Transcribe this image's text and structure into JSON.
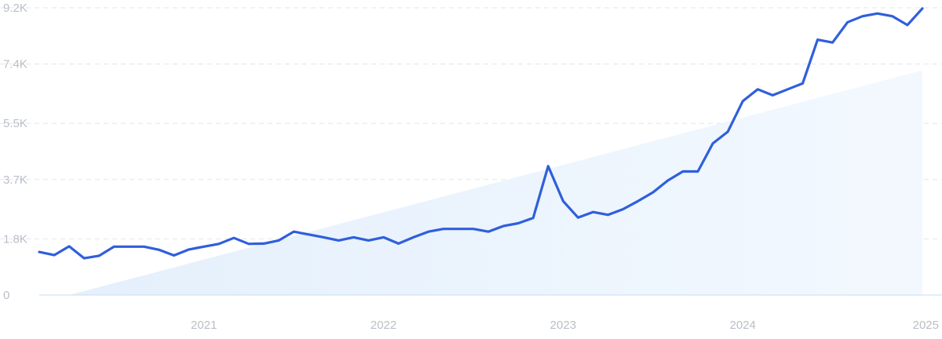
{
  "chart_data": {
    "type": "line",
    "title": "",
    "xlabel": "",
    "ylabel": "",
    "ylim": [
      0,
      9200
    ],
    "xlim": [
      "2020-02",
      "2025-01"
    ],
    "y_ticks": [
      {
        "value": 0,
        "label": "0"
      },
      {
        "value": 1800,
        "label": "1.8K"
      },
      {
        "value": 3700,
        "label": "3.7K"
      },
      {
        "value": 5500,
        "label": "5.5K"
      },
      {
        "value": 7400,
        "label": "7.4K"
      },
      {
        "value": 9200,
        "label": "9.2K"
      }
    ],
    "x_ticks": [
      {
        "date": "2021-01",
        "label": "2021"
      },
      {
        "date": "2022-01",
        "label": "2022"
      },
      {
        "date": "2023-01",
        "label": "2023"
      },
      {
        "date": "2024-01",
        "label": "2024"
      },
      {
        "date": "2025-01",
        "label": "2025"
      }
    ],
    "grid": true,
    "legend": "none",
    "colors": {
      "line": "#2f5fdb",
      "trend_fill": "#e7f1fc",
      "grid": "#e3e6ea",
      "tick_text": "#b9bec7"
    },
    "series": [
      {
        "x": [
          "2020-02",
          "2020-03",
          "2020-04",
          "2020-05",
          "2020-06",
          "2020-07",
          "2020-08",
          "2020-09",
          "2020-10",
          "2020-11",
          "2020-12",
          "2021-01",
          "2021-02",
          "2021-03",
          "2021-04",
          "2021-05",
          "2021-06",
          "2021-07",
          "2021-08",
          "2021-09",
          "2021-10",
          "2021-11",
          "2021-12",
          "2022-01",
          "2022-02",
          "2022-03",
          "2022-04",
          "2022-05",
          "2022-06",
          "2022-07",
          "2022-08",
          "2022-09",
          "2022-10",
          "2022-11",
          "2022-12",
          "2023-01",
          "2023-02",
          "2023-03",
          "2023-04",
          "2023-05",
          "2023-06",
          "2023-07",
          "2023-08",
          "2023-09",
          "2023-10",
          "2023-11",
          "2023-12",
          "2024-01",
          "2024-02",
          "2024-03",
          "2024-04",
          "2024-05",
          "2024-06",
          "2024-07",
          "2024-08",
          "2024-09",
          "2024-10",
          "2024-11",
          "2024-12",
          "2025-01"
        ],
        "values": [
          1380,
          1280,
          1560,
          1180,
          1260,
          1550,
          1550,
          1550,
          1450,
          1270,
          1460,
          1550,
          1640,
          1830,
          1640,
          1650,
          1750,
          2030,
          1940,
          1850,
          1750,
          1850,
          1750,
          1850,
          1650,
          1850,
          2030,
          2120,
          2120,
          2120,
          2030,
          2210,
          2300,
          2470,
          4130,
          3010,
          2480,
          2660,
          2570,
          2750,
          3010,
          3290,
          3670,
          3960,
          3960,
          4860,
          5230,
          6210,
          6590,
          6400,
          6590,
          6780,
          8180,
          8090,
          8740,
          8930,
          9020,
          8930,
          8650,
          9180
        ]
      }
    ],
    "trend_band": {
      "x": [
        "2020-04",
        "2025-01"
      ],
      "values": [
        0,
        7200
      ]
    }
  }
}
